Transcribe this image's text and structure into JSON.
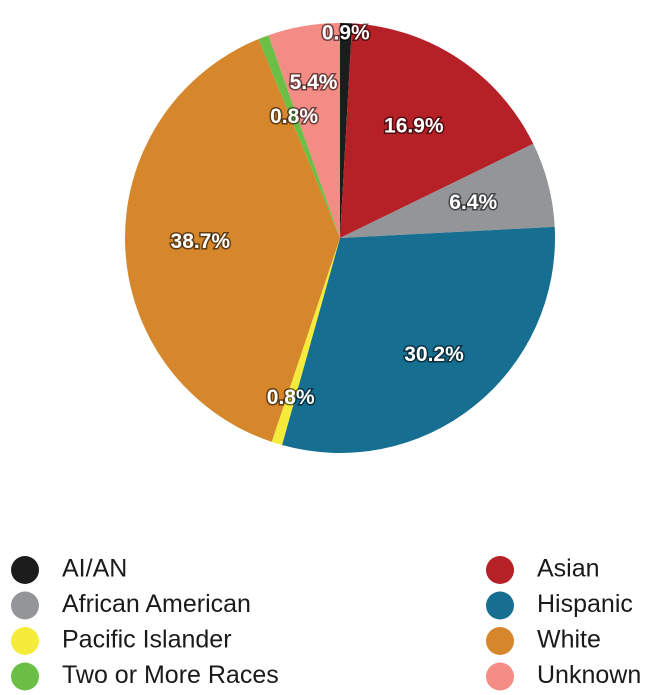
{
  "chart_data": {
    "type": "pie",
    "categories": [
      "AI/AN",
      "Asian",
      "African American",
      "Hispanic",
      "Pacific Islander",
      "White",
      "Two or More Races",
      "Unknown"
    ],
    "values": [
      0.9,
      16.9,
      6.4,
      30.2,
      0.8,
      38.7,
      0.8,
      5.4
    ],
    "value_labels": [
      "0.9%",
      "16.9%",
      "6.4%",
      "30.2%",
      "0.8%",
      "38.7%",
      "0.8%",
      "5.4%"
    ],
    "colors": [
      "#1c1c1c",
      "#b52127",
      "#939598",
      "#166e90",
      "#f4eb3b",
      "#d6862b",
      "#6cbf45",
      "#f48c86"
    ]
  }
}
